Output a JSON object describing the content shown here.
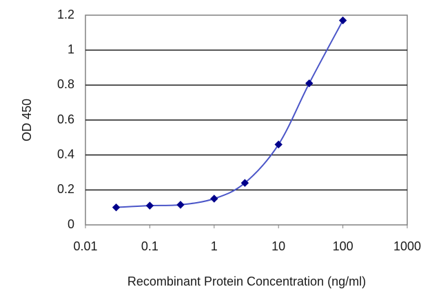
{
  "chart_data": {
    "type": "line",
    "title": "",
    "xlabel": "Recombinant Protein Concentration (ng/ml)",
    "ylabel": "OD 450",
    "xscale": "log",
    "xlim": [
      0.01,
      1000
    ],
    "ylim": [
      0,
      1.2
    ],
    "x_ticks": [
      0.01,
      0.1,
      1,
      10,
      100,
      1000
    ],
    "x_tick_labels": [
      "0.01",
      "0.1",
      "1",
      "10",
      "100",
      "1000"
    ],
    "y_ticks": [
      0,
      0.2,
      0.4,
      0.6,
      0.8,
      1,
      1.2
    ],
    "y_tick_labels": [
      "0",
      "0.2",
      "0.4",
      "0.6",
      "0.8",
      "1",
      "1.2"
    ],
    "grid": "horizontal",
    "legend": "none",
    "series": [
      {
        "x": [
          0.03,
          0.1,
          0.3,
          1,
          3,
          10,
          30,
          100
        ],
        "y": [
          0.1,
          0.11,
          0.115,
          0.15,
          0.24,
          0.46,
          0.81,
          1.17
        ],
        "color": "#00008b",
        "line_color": "#4a55c8"
      }
    ]
  }
}
